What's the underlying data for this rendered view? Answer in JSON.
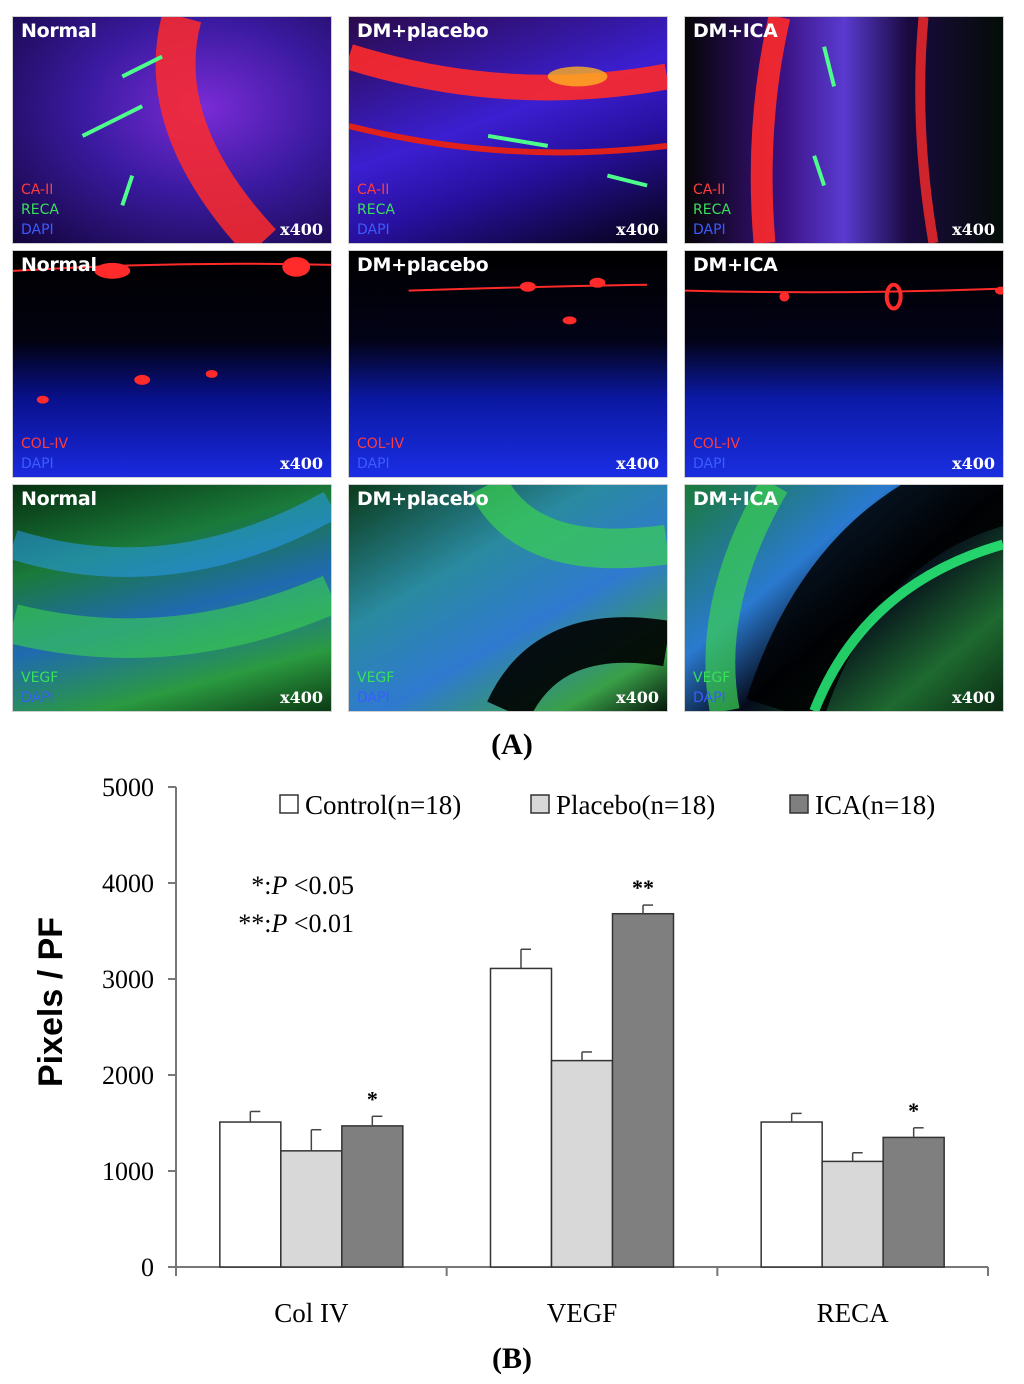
{
  "panel_a": {
    "label": "(A)",
    "rows": [
      {
        "panels": [
          {
            "title": "Normal",
            "magnification": "x400",
            "stains": [
              {
                "name": "CA-II",
                "color": "#ff3b3b"
              },
              {
                "name": "RECA",
                "color": "#39e05a"
              },
              {
                "name": "DAPI",
                "color": "#3b5bff"
              }
            ]
          },
          {
            "title": "DM+placebo",
            "magnification": "x400",
            "stains": [
              {
                "name": "CA-II",
                "color": "#ff3b3b"
              },
              {
                "name": "RECA",
                "color": "#39e05a"
              },
              {
                "name": "DAPI",
                "color": "#3b5bff"
              }
            ]
          },
          {
            "title": "DM+ICA",
            "magnification": "x400",
            "stains": [
              {
                "name": "CA-II",
                "color": "#ff3b3b"
              },
              {
                "name": "RECA",
                "color": "#39e05a"
              },
              {
                "name": "DAPI",
                "color": "#3b5bff"
              }
            ]
          }
        ]
      },
      {
        "panels": [
          {
            "title": "Normal",
            "magnification": "x400",
            "stains": [
              {
                "name": "COL-IV",
                "color": "#ff3b3b"
              },
              {
                "name": "DAPI",
                "color": "#3b5bff"
              }
            ]
          },
          {
            "title": "DM+placebo",
            "magnification": "x400",
            "stains": [
              {
                "name": "COL-IV",
                "color": "#ff3b3b"
              },
              {
                "name": "DAPI",
                "color": "#3b5bff"
              }
            ]
          },
          {
            "title": "DM+ICA",
            "magnification": "x400",
            "stains": [
              {
                "name": "COL-IV",
                "color": "#ff3b3b"
              },
              {
                "name": "DAPI",
                "color": "#3b5bff"
              }
            ]
          }
        ]
      },
      {
        "panels": [
          {
            "title": "Normal",
            "magnification": "x400",
            "stains": [
              {
                "name": "VEGF",
                "color": "#39e05a"
              },
              {
                "name": "DAPI",
                "color": "#3b5bff"
              }
            ]
          },
          {
            "title": "DM+placebo",
            "magnification": "x400",
            "stains": [
              {
                "name": "VEGF",
                "color": "#39e05a"
              },
              {
                "name": "DAPI",
                "color": "#3b5bff"
              }
            ]
          },
          {
            "title": "DM+ICA",
            "magnification": "x400",
            "stains": [
              {
                "name": "VEGF",
                "color": "#39e05a"
              },
              {
                "name": "DAPI",
                "color": "#3b5bff"
              }
            ]
          }
        ]
      }
    ]
  },
  "panel_b": {
    "label": "(B)"
  },
  "chart_data": {
    "type": "bar",
    "categories": [
      "Col IV",
      "VEGF",
      "RECA"
    ],
    "series": [
      {
        "name": "Control(n=18)",
        "color": "#ffffff",
        "values": [
          1510,
          3110,
          1510
        ],
        "errors": [
          110,
          200,
          90
        ]
      },
      {
        "name": "Placebo(n=18)",
        "color": "#d8d8d8",
        "values": [
          1210,
          2150,
          1100
        ],
        "errors": [
          220,
          90,
          90
        ]
      },
      {
        "name": "ICA(n=18)",
        "color": "#7f7f7f",
        "values": [
          1470,
          3680,
          1350
        ],
        "errors": [
          100,
          90,
          100
        ]
      }
    ],
    "significance": [
      [
        "",
        "",
        "*"
      ],
      [
        "",
        "",
        "**"
      ],
      [
        "",
        "",
        "*"
      ]
    ],
    "ylabel": "Pixels / PF",
    "xlabel": "",
    "ylim": [
      0,
      5000
    ],
    "yticks": [
      0,
      1000,
      2000,
      3000,
      4000,
      5000
    ],
    "legend_position": "top",
    "annotation": [
      {
        "stars": "*:",
        "p": "P",
        "value": "<0.05"
      },
      {
        "stars": "**:",
        "p": "P",
        "value": "<0.01"
      }
    ],
    "grid": false
  }
}
